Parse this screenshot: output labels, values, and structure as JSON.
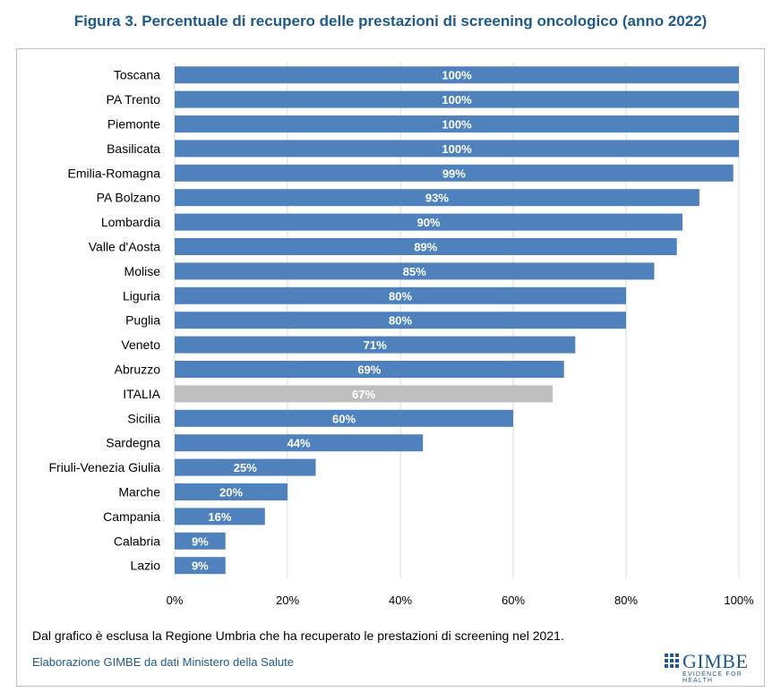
{
  "title": "Figura 3. Percentuale di recupero delle prestazioni di screening oncologico (anno 2022)",
  "note": "Dal grafico è esclusa la Regione Umbria che ha recuperato le prestazioni di screening nel 2021.",
  "source": "Elaborazione GIMBE da dati Ministero della Salute",
  "logo": {
    "name": "GIMBE",
    "tagline": "EVIDENCE FOR HEALTH"
  },
  "colors": {
    "bar": "#4f81bd",
    "highlight": "#bfbfbf",
    "grid": "#d9d9d9",
    "title": "#1f5a8c"
  },
  "chart_data": {
    "type": "bar",
    "orientation": "horizontal",
    "title": "Figura 3. Percentuale di recupero delle prestazioni di screening oncologico (anno 2022)",
    "xlabel": "",
    "ylabel": "",
    "xlim": [
      0,
      100
    ],
    "x_ticks": [
      0,
      20,
      40,
      60,
      80,
      100
    ],
    "tick_format": "{v}%",
    "grid": true,
    "legend": "none",
    "highlight_category": "ITALIA",
    "categories": [
      "Toscana",
      "PA Trento",
      "Piemonte",
      "Basilicata",
      "Emilia-Romagna",
      "PA Bolzano",
      "Lombardia",
      "Valle d'Aosta",
      "Molise",
      "Liguria",
      "Puglia",
      "Veneto",
      "Abruzzo",
      "ITALIA",
      "Sicilia",
      "Sardegna",
      "Friuli-Venezia Giulia",
      "Marche",
      "Campania",
      "Calabria",
      "Lazio"
    ],
    "values": [
      100,
      100,
      100,
      100,
      99,
      93,
      90,
      89,
      85,
      80,
      80,
      71,
      69,
      67,
      60,
      44,
      25,
      20,
      16,
      9,
      9
    ],
    "data_labels": [
      "100%",
      "100%",
      "100%",
      "100%",
      "99%",
      "93%",
      "90%",
      "89%",
      "85%",
      "80%",
      "80%",
      "71%",
      "69%",
      "67%",
      "60%",
      "44%",
      "25%",
      "20%",
      "16%",
      "9%",
      "9%"
    ]
  }
}
